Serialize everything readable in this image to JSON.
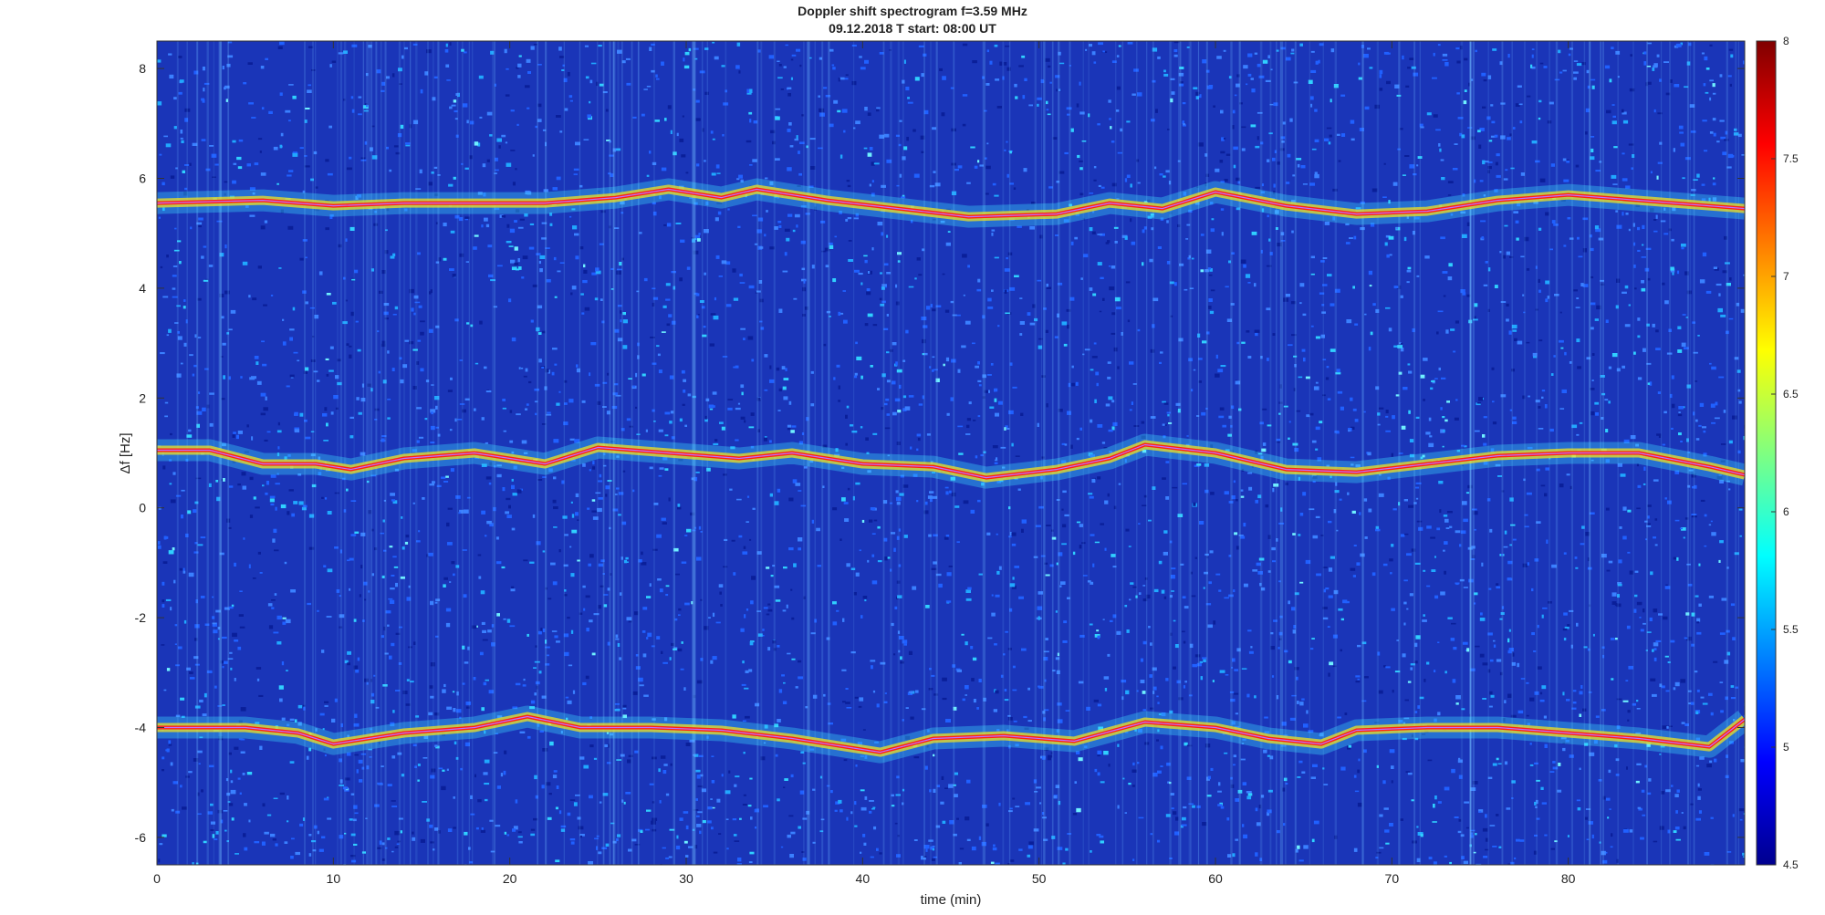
{
  "chart_data": {
    "type": "heatmap",
    "title": "Doppler shift spectrogram f=3.59 MHz",
    "subtitle": "09.12.2018   T start: 08:00 UT",
    "xlabel": "time (min)",
    "ylabel": "Δf [Hz]",
    "xlim": [
      0,
      90
    ],
    "ylim": [
      -6.5,
      8.5
    ],
    "x_ticks": [
      0,
      10,
      20,
      30,
      40,
      50,
      60,
      70,
      80
    ],
    "y_ticks": [
      -6,
      -4,
      -2,
      0,
      2,
      4,
      6,
      8
    ],
    "colorbar": {
      "colormap": "jet",
      "range": [
        4.5,
        8
      ],
      "ticks": [
        "8",
        "7.5",
        "7",
        "6.5",
        "6",
        "5.5",
        "5",
        "4.5"
      ]
    },
    "traces": [
      {
        "x": [
          0,
          3,
          6,
          9,
          11,
          14,
          18,
          20,
          22,
          25,
          29,
          33,
          36,
          40,
          44,
          47,
          51,
          54,
          56,
          60,
          64,
          68,
          72,
          76,
          80,
          84,
          88,
          90
        ],
        "y": [
          1.05,
          1.05,
          0.8,
          0.8,
          0.7,
          0.9,
          1.0,
          0.9,
          0.8,
          1.1,
          1.0,
          0.9,
          1.0,
          0.8,
          0.75,
          0.55,
          0.7,
          0.9,
          1.15,
          1.0,
          0.7,
          0.65,
          0.8,
          0.95,
          1.0,
          1.0,
          0.75,
          0.6
        ]
      },
      {
        "x": [
          0,
          5,
          8,
          10,
          14,
          18,
          21,
          24,
          28,
          32,
          36,
          41,
          44,
          48,
          52,
          56,
          60,
          63,
          66,
          68,
          72,
          76,
          80,
          84,
          88,
          90
        ],
        "y": [
          -4.0,
          -4.0,
          -4.1,
          -4.3,
          -4.1,
          -4.0,
          -3.8,
          -4.0,
          -4.0,
          -4.05,
          -4.2,
          -4.45,
          -4.2,
          -4.15,
          -4.25,
          -3.9,
          -4.0,
          -4.2,
          -4.3,
          -4.05,
          -4.0,
          -4.0,
          -4.1,
          -4.2,
          -4.35,
          -3.85
        ]
      },
      {
        "x": [
          0,
          6,
          10,
          14,
          18,
          22,
          26,
          29,
          32,
          34,
          38,
          42,
          46,
          51,
          54,
          57,
          60,
          64,
          68,
          72,
          76,
          80,
          84,
          88,
          90
        ],
        "y": [
          5.55,
          5.6,
          5.5,
          5.55,
          5.55,
          5.55,
          5.65,
          5.8,
          5.65,
          5.8,
          5.6,
          5.45,
          5.3,
          5.35,
          5.55,
          5.45,
          5.75,
          5.5,
          5.35,
          5.4,
          5.6,
          5.7,
          5.6,
          5.5,
          5.45
        ]
      }
    ],
    "colors": {
      "background": "#1a35b8",
      "line": "#c070ff",
      "trace_core": "#ff2010",
      "trace_halo": "#f0e020"
    }
  }
}
